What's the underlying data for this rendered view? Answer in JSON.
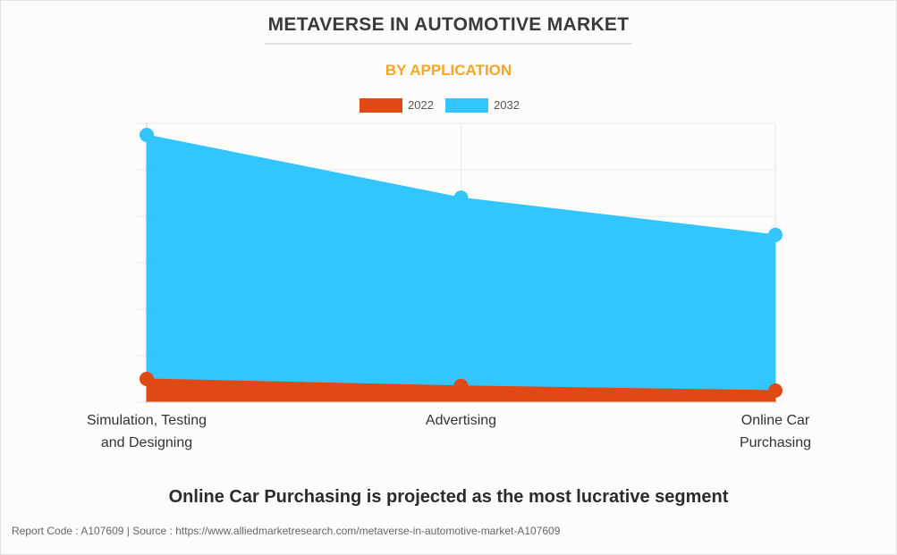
{
  "title": "METAVERSE IN AUTOMOTIVE MARKET",
  "subtitle": "BY APPLICATION",
  "headline": "Online Car Purchasing is projected as the most lucrative segment",
  "footer": "Report Code : A107609  |  Source : https://www.alliedmarketresearch.com/metaverse-in-automotive-market-A107609",
  "colors": {
    "title": "#3a3a3a",
    "subtitle": "#f5a623",
    "series_2022": "#e04814",
    "series_2032": "#33c5fd",
    "grid": "#e8e8e8",
    "axis": "#cccccc"
  },
  "chart_data": {
    "type": "area",
    "categories": [
      "Simulation, Testing\nand Designing",
      "Advertising",
      "Online Car\nPurchasing"
    ],
    "series": [
      {
        "name": "2022",
        "color": "#e04814",
        "values": [
          5,
          3.5,
          2.5
        ]
      },
      {
        "name": "2032",
        "color": "#33c5fd",
        "values": [
          57.5,
          44,
          36
        ]
      }
    ],
    "ylim": [
      0,
      60
    ],
    "grid": true,
    "legend": "top-center",
    "y_tick_labels_shown": false
  }
}
